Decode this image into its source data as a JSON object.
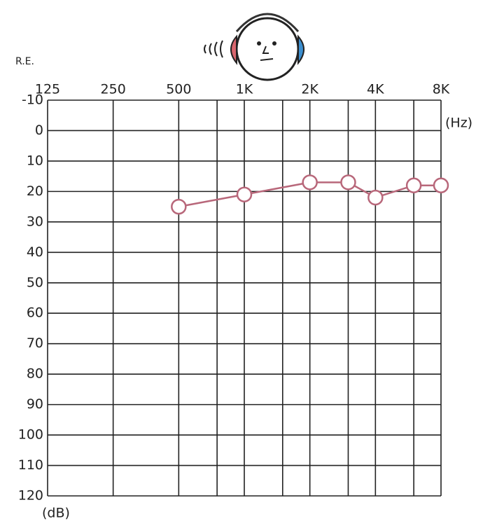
{
  "chart_data": {
    "type": "line",
    "corner_label": "R.E.",
    "x_label": "(Hz)",
    "y_label": "(dB)",
    "x": [
      500,
      1000,
      2000,
      3000,
      4000,
      6000,
      8000
    ],
    "series": [
      {
        "color": "#b8677a",
        "values": [
          25,
          21,
          17,
          17,
          22,
          18,
          18
        ]
      }
    ],
    "xlim": [
      125,
      8000
    ],
    "x_log": true,
    "xticks": [
      125,
      250,
      500,
      {
        "value": 1000,
        "label": "1K"
      },
      {
        "value": 2000,
        "label": "2K"
      },
      {
        "value": 4000,
        "label": "4K"
      },
      {
        "value": 8000,
        "label": "8K"
      }
    ],
    "x_minor_ticks": [
      750,
      1500,
      3000,
      6000
    ],
    "ylim": [
      -10,
      120
    ],
    "y_inverted": true,
    "yticks": [
      -10,
      0,
      10,
      20,
      30,
      40,
      50,
      60,
      70,
      80,
      90,
      100,
      110,
      120
    ],
    "grid": true
  }
}
